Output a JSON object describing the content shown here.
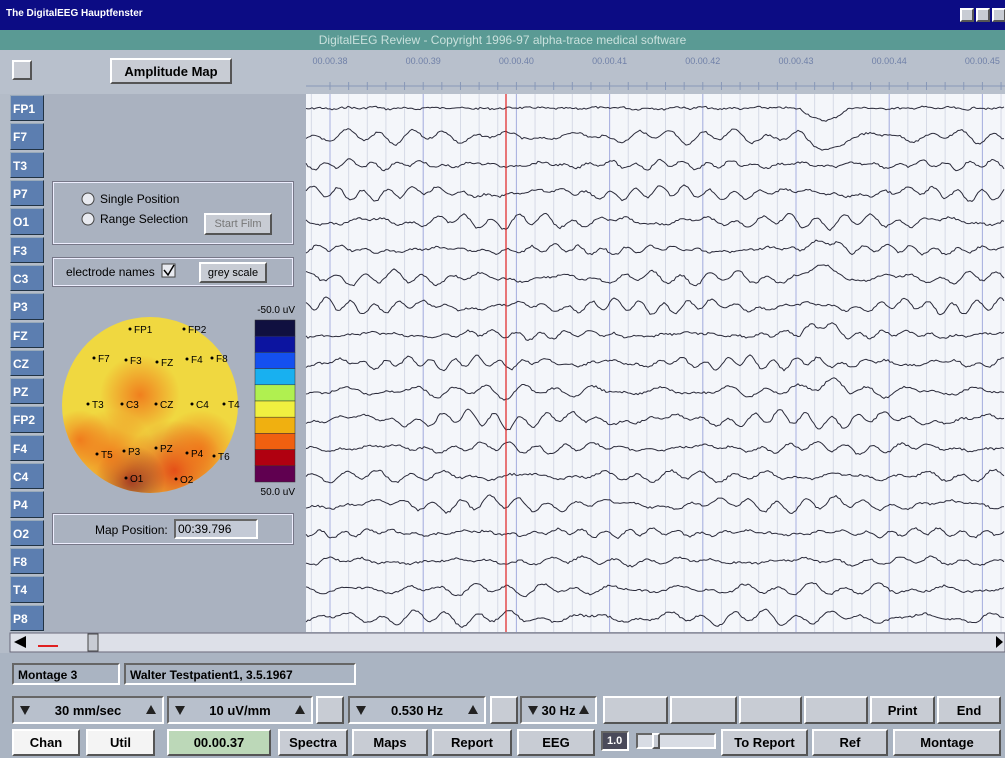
{
  "window": {
    "title": "The DigitalEEG Hauptfenster",
    "banner": "DigitalEEG Review - Copyright 1996-97 alpha-trace medical software"
  },
  "map_mode": "Amplitude Map",
  "time_labels": [
    "00.00.38",
    "00.00.39",
    "00.00.40",
    "00.00.41",
    "00.00.42",
    "00.00.43",
    "00.00.44",
    "00.00.45"
  ],
  "channels": [
    "FP1",
    "F7",
    "T3",
    "P7",
    "O1",
    "F3",
    "C3",
    "P3",
    "FZ",
    "CZ",
    "PZ",
    "FP2",
    "F4",
    "C4",
    "P4",
    "O2",
    "F8",
    "T4",
    "P8"
  ],
  "panel": {
    "single_position": "Single Position",
    "range_selection": "Range Selection",
    "start_film": "Start Film",
    "electrode_names": "electrode names",
    "grey_scale": "grey scale",
    "map_position_label": "Map Position:",
    "map_position": "00:39.796"
  },
  "color_scale": {
    "top": "-50.0 uV",
    "bottom": "50.0 uV"
  },
  "electrodes": [
    "FP1",
    "FP2",
    "F7",
    "F3",
    "FZ",
    "F4",
    "F8",
    "T3",
    "C3",
    "CZ",
    "C4",
    "T4",
    "T5",
    "P3",
    "PZ",
    "P4",
    "T6",
    "O1",
    "O2"
  ],
  "status": {
    "montage": "Montage 3",
    "patient": "Walter Testpatient1, 3.5.1967"
  },
  "controls": {
    "speed": "30 mm/sec",
    "sensitivity": "10 uV/mm",
    "low_filter": "0.530 Hz",
    "high_filter": "30 Hz",
    "print": "Print",
    "end": "End",
    "chan": "Chan",
    "util": "Util",
    "time": "00.00.37",
    "spectra": "Spectra",
    "maps": "Maps",
    "report": "Report",
    "eeg": "EEG",
    "zoom": "1.0",
    "to_report": "To Report",
    "ref": "Ref",
    "montage": "Montage"
  }
}
